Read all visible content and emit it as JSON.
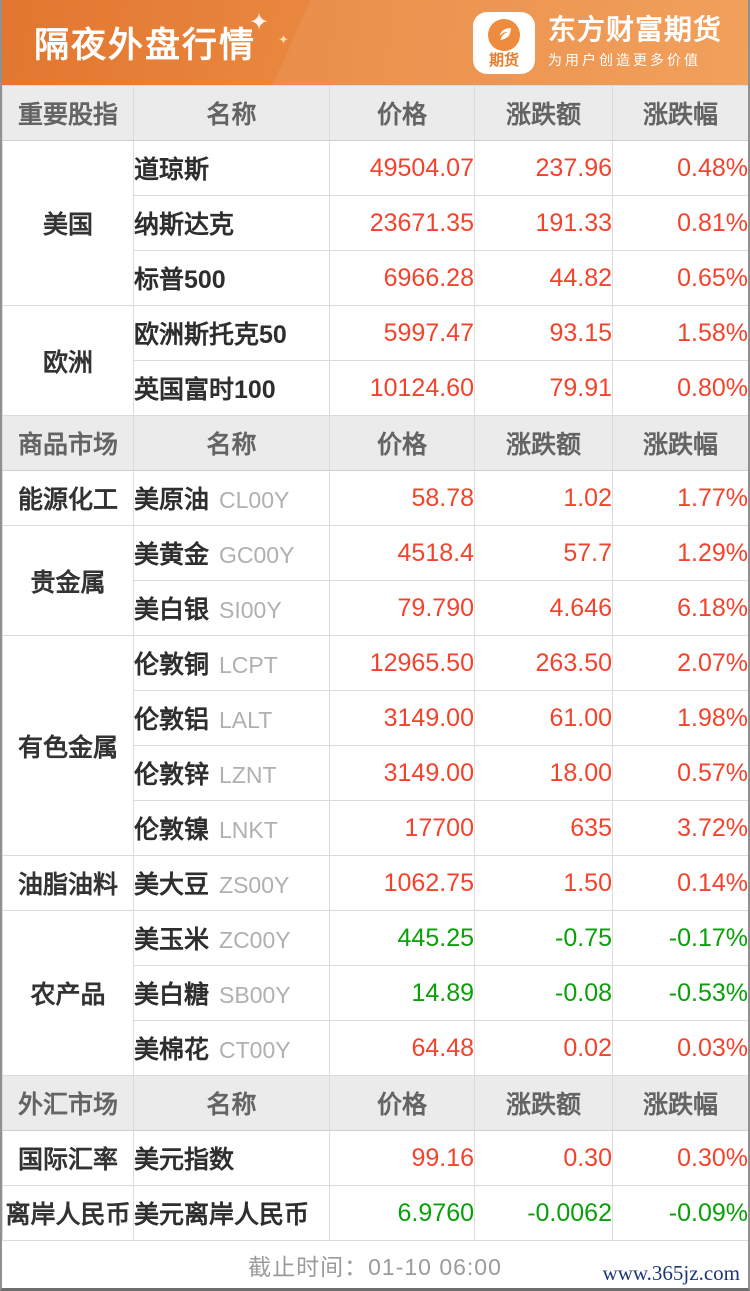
{
  "banner": {
    "title": "隔夜外盘行情",
    "logo": {
      "badge_text": "期货",
      "brand_name": "东方财富期货",
      "tagline": "为用户创造更多价值"
    },
    "sparkle_glyph": "✦"
  },
  "colors": {
    "up": "#f4432c",
    "down": "#0aa00a",
    "banner_orange": "#e9873f"
  },
  "table": {
    "sections": [
      {
        "columns": [
          "重要股指",
          "名称",
          "价格",
          "涨跌额",
          "涨跌幅"
        ],
        "groups": [
          {
            "category": "美国",
            "rows": [
              {
                "name": "道琼斯",
                "code": "",
                "price": "49504.07",
                "change": "237.96",
                "pct": "0.48%",
                "trend": "up"
              },
              {
                "name": "纳斯达克",
                "code": "",
                "price": "23671.35",
                "change": "191.33",
                "pct": "0.81%",
                "trend": "up"
              },
              {
                "name": "标普500",
                "code": "",
                "price": "6966.28",
                "change": "44.82",
                "pct": "0.65%",
                "trend": "up"
              }
            ]
          },
          {
            "category": "欧洲",
            "rows": [
              {
                "name": "欧洲斯托克50",
                "code": "",
                "price": "5997.47",
                "change": "93.15",
                "pct": "1.58%",
                "trend": "up"
              },
              {
                "name": "英国富时100",
                "code": "",
                "price": "10124.60",
                "change": "79.91",
                "pct": "0.80%",
                "trend": "up"
              }
            ]
          }
        ]
      },
      {
        "columns": [
          "商品市场",
          "名称",
          "价格",
          "涨跌额",
          "涨跌幅"
        ],
        "groups": [
          {
            "category": "能源化工",
            "rows": [
              {
                "name": "美原油",
                "code": "CL00Y",
                "price": "58.78",
                "change": "1.02",
                "pct": "1.77%",
                "trend": "up"
              }
            ]
          },
          {
            "category": "贵金属",
            "rows": [
              {
                "name": "美黄金",
                "code": "GC00Y",
                "price": "4518.4",
                "change": "57.7",
                "pct": "1.29%",
                "trend": "up"
              },
              {
                "name": "美白银",
                "code": "SI00Y",
                "price": "79.790",
                "change": "4.646",
                "pct": "6.18%",
                "trend": "up"
              }
            ]
          },
          {
            "category": "有色金属",
            "rows": [
              {
                "name": "伦敦铜",
                "code": "LCPT",
                "price": "12965.50",
                "change": "263.50",
                "pct": "2.07%",
                "trend": "up"
              },
              {
                "name": "伦敦铝",
                "code": "LALT",
                "price": "3149.00",
                "change": "61.00",
                "pct": "1.98%",
                "trend": "up"
              },
              {
                "name": "伦敦锌",
                "code": "LZNT",
                "price": "3149.00",
                "change": "18.00",
                "pct": "0.57%",
                "trend": "up"
              },
              {
                "name": "伦敦镍",
                "code": "LNKT",
                "price": "17700",
                "change": "635",
                "pct": "3.72%",
                "trend": "up"
              }
            ]
          },
          {
            "category": "油脂油料",
            "rows": [
              {
                "name": "美大豆",
                "code": "ZS00Y",
                "price": "1062.75",
                "change": "1.50",
                "pct": "0.14%",
                "trend": "up"
              }
            ]
          },
          {
            "category": "农产品",
            "rows": [
              {
                "name": "美玉米",
                "code": "ZC00Y",
                "price": "445.25",
                "change": "-0.75",
                "pct": "-0.17%",
                "trend": "down"
              },
              {
                "name": "美白糖",
                "code": "SB00Y",
                "price": "14.89",
                "change": "-0.08",
                "pct": "-0.53%",
                "trend": "down"
              },
              {
                "name": "美棉花",
                "code": "CT00Y",
                "price": "64.48",
                "change": "0.02",
                "pct": "0.03%",
                "trend": "up"
              }
            ]
          }
        ]
      },
      {
        "columns": [
          "外汇市场",
          "名称",
          "价格",
          "涨跌额",
          "涨跌幅"
        ],
        "groups": [
          {
            "category": "国际汇率",
            "rows": [
              {
                "name": "美元指数",
                "code": "",
                "price": "99.16",
                "change": "0.30",
                "pct": "0.30%",
                "trend": "up"
              }
            ]
          },
          {
            "category": "离岸人民币",
            "rows": [
              {
                "name": "美元离岸人民币",
                "code": "",
                "price": "6.9760",
                "change": "-0.0062",
                "pct": "-0.09%",
                "trend": "down"
              }
            ]
          }
        ]
      }
    ]
  },
  "footer": {
    "deadline_label": "截止时间：",
    "deadline_value": "01-10 06:00",
    "website": "www.365jz.com"
  }
}
